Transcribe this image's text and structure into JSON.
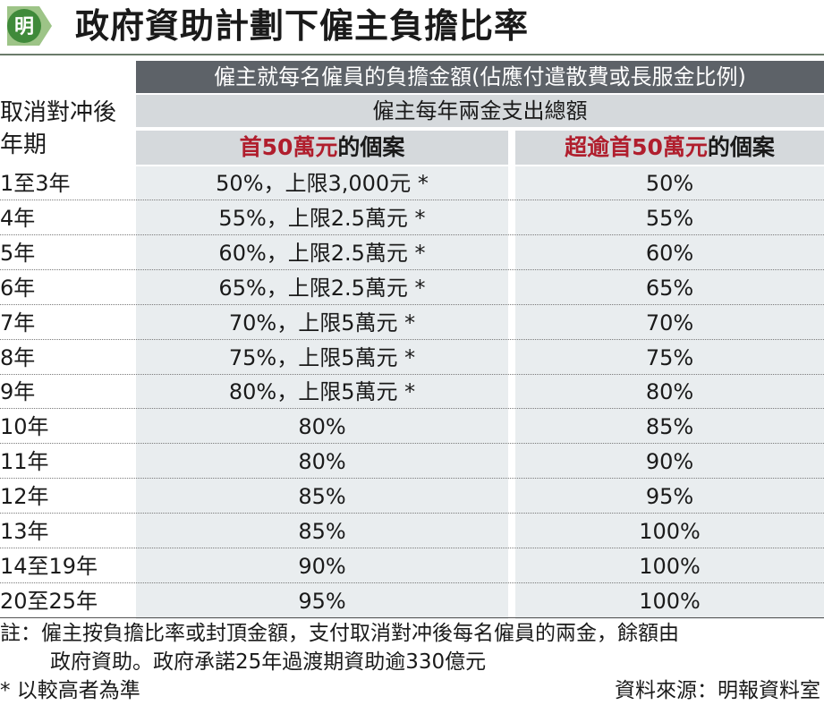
{
  "title": "政府資助計劃下僱主負擔比率",
  "logo_char": "明",
  "header_row1": "僱主就每名僱員的負擔金額(佔應付遣散費或長服金比例)",
  "header_row2": "僱主每年兩金支出總額",
  "col0_header": "取消對冲後年期",
  "col0_header_line1": "取消對冲後",
  "col0_header_line2": "年期",
  "col1_header_red": "首50萬元",
  "col1_header_rest": "的個案",
  "col2_header_red": "超逾首50萬元",
  "col2_header_rest": "的個案",
  "rows": [
    {
      "period": "1至3年",
      "first": "50%，上限3,000元 *",
      "over": "50%"
    },
    {
      "period": "4年",
      "first": "55%，上限2.5萬元 *",
      "over": "55%"
    },
    {
      "period": "5年",
      "first": "60%，上限2.5萬元 *",
      "over": "60%"
    },
    {
      "period": "6年",
      "first": "65%，上限2.5萬元 *",
      "over": "65%"
    },
    {
      "period": "7年",
      "first": "70%，上限5萬元 *",
      "over": "70%"
    },
    {
      "period": "8年",
      "first": "75%，上限5萬元 *",
      "over": "75%"
    },
    {
      "period": "9年",
      "first": "80%，上限5萬元 *",
      "over": "80%"
    },
    {
      "period": "10年",
      "first": "80%",
      "over": "85%"
    },
    {
      "period": "11年",
      "first": "80%",
      "over": "90%"
    },
    {
      "period": "12年",
      "first": "85%",
      "over": "95%"
    },
    {
      "period": "13年",
      "first": "85%",
      "over": "100%"
    },
    {
      "period": "14至19年",
      "first": "90%",
      "over": "100%"
    },
    {
      "period": "20至25年",
      "first": "95%",
      "over": "100%"
    }
  ],
  "note_line1": "註：僱主按負擔比率或封頂金額，支付取消對冲後每名僱員的兩金，餘額由",
  "note_line2": "政府資助。政府承諾25年過渡期資助逾330億元",
  "footnote": "* 以較高者為準",
  "source": "資料來源：明報資料室",
  "colors": {
    "red": "#b01e2d",
    "dark_bar": "#5d6268",
    "light_bar": "#d5d9dc",
    "body_bg": "#e9edef",
    "logo_green": "#6fa35a"
  }
}
